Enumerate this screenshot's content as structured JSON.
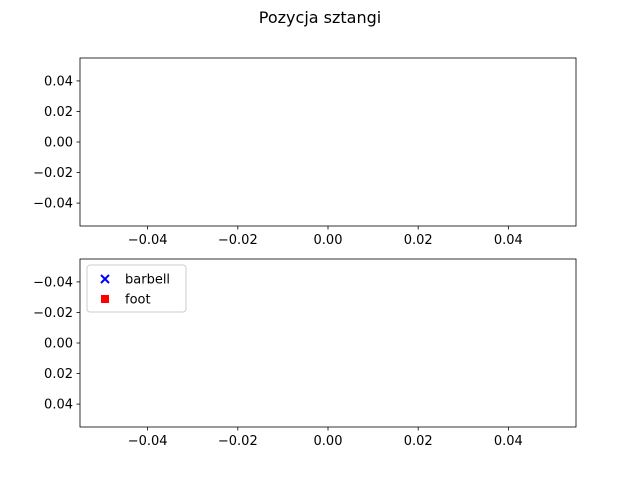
{
  "title": "Pozycja sztangi",
  "colors": {
    "barbell": "#0000ff",
    "foot": "#ff0000",
    "axes": "#000000",
    "legend_border": "#cccccc"
  },
  "chart_data": [
    {
      "type": "scatter",
      "title": "",
      "xlabel": "",
      "ylabel": "",
      "xlim": [
        -0.055,
        0.055
      ],
      "ylim": [
        -0.055,
        0.055
      ],
      "y_inverted": false,
      "grid": false,
      "x_ticks": [
        -0.04,
        -0.02,
        0.0,
        0.02,
        0.04
      ],
      "y_ticks": [
        -0.04,
        -0.02,
        0.0,
        0.02,
        0.04
      ],
      "x_tick_labels": [
        "−0.04",
        "−0.02",
        "0.00",
        "0.02",
        "0.04"
      ],
      "y_tick_labels": [
        "−0.04",
        "−0.02",
        "0.00",
        "0.02",
        "0.04"
      ],
      "series": []
    },
    {
      "type": "scatter",
      "title": "",
      "xlabel": "",
      "ylabel": "",
      "xlim": [
        -0.055,
        0.055
      ],
      "ylim": [
        0.055,
        -0.055
      ],
      "y_inverted": true,
      "grid": false,
      "x_ticks": [
        -0.04,
        -0.02,
        0.0,
        0.02,
        0.04
      ],
      "y_ticks": [
        -0.04,
        -0.02,
        0.0,
        0.02,
        0.04
      ],
      "x_tick_labels": [
        "−0.04",
        "−0.02",
        "0.00",
        "0.02",
        "0.04"
      ],
      "y_tick_labels": [
        "−0.04",
        "−0.02",
        "0.00",
        "0.02",
        "0.04"
      ],
      "legend": {
        "position": "upper-left",
        "entries": [
          {
            "name": "barbell",
            "marker": "x",
            "color": "#0000ff"
          },
          {
            "name": "foot",
            "marker": "s",
            "color": "#ff0000"
          }
        ]
      },
      "series": [
        {
          "name": "barbell",
          "marker": "x",
          "color": "#0000ff",
          "x": [],
          "y": []
        },
        {
          "name": "foot",
          "marker": "s",
          "color": "#ff0000",
          "x": [],
          "y": []
        }
      ]
    }
  ]
}
